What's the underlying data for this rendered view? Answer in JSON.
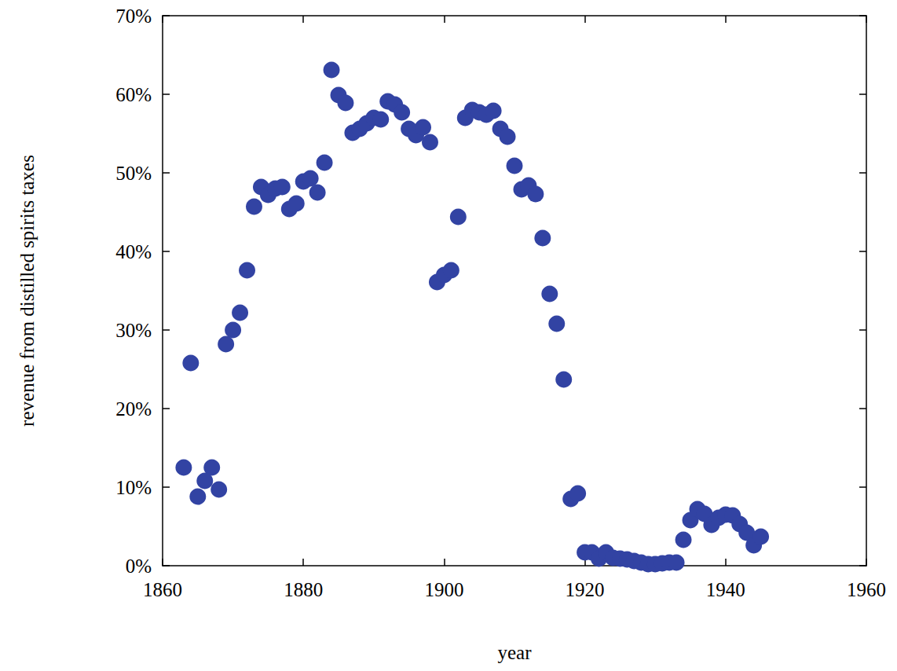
{
  "chart_data": {
    "type": "scatter",
    "x_label": "year",
    "y_label": "revenue from distilled spirits taxes",
    "color": "#3243a3",
    "marker": "circle",
    "grid": false,
    "xlim": [
      1860,
      1960
    ],
    "xticks": [
      1860,
      1880,
      1900,
      1920,
      1940,
      1960
    ],
    "ylim": [
      0,
      70
    ],
    "yticks": [
      {
        "value": 0,
        "label": "0%"
      },
      {
        "value": 10,
        "label": "10%"
      },
      {
        "value": 20,
        "label": "20%"
      },
      {
        "value": 30,
        "label": "30%"
      },
      {
        "value": 40,
        "label": "40%"
      },
      {
        "value": 50,
        "label": "50%"
      },
      {
        "value": 60,
        "label": "60%"
      },
      {
        "value": 70,
        "label": "70%"
      }
    ],
    "x": [
      1863,
      1864,
      1865,
      1866,
      1867,
      1868,
      1869,
      1870,
      1871,
      1872,
      1873,
      1874,
      1875,
      1876,
      1877,
      1878,
      1879,
      1880,
      1881,
      1882,
      1883,
      1884,
      1885,
      1886,
      1887,
      1888,
      1889,
      1890,
      1891,
      1892,
      1893,
      1894,
      1895,
      1896,
      1897,
      1898,
      1899,
      1900,
      1901,
      1902,
      1903,
      1904,
      1905,
      1906,
      1907,
      1908,
      1909,
      1910,
      1911,
      1912,
      1913,
      1914,
      1915,
      1916,
      1917,
      1918,
      1919,
      1920,
      1921,
      1922,
      1923,
      1924,
      1925,
      1926,
      1927,
      1928,
      1929,
      1930,
      1931,
      1932,
      1933,
      1934,
      1935,
      1936,
      1937,
      1938,
      1939,
      1940,
      1941,
      1942,
      1943,
      1944,
      1945
    ],
    "values": [
      12.5,
      25.8,
      8.8,
      10.8,
      12.5,
      9.7,
      28.2,
      30.0,
      32.2,
      37.6,
      45.7,
      48.2,
      47.2,
      48.0,
      48.2,
      45.4,
      46.1,
      48.9,
      49.3,
      47.5,
      51.3,
      63.1,
      59.9,
      58.9,
      55.1,
      55.6,
      56.3,
      57.0,
      56.8,
      59.1,
      58.7,
      57.7,
      55.6,
      54.8,
      55.8,
      53.9,
      36.1,
      37.0,
      37.6,
      44.4,
      57.0,
      58.0,
      57.7,
      57.4,
      57.9,
      55.6,
      54.6,
      50.9,
      47.9,
      48.4,
      47.3,
      41.7,
      34.6,
      30.8,
      23.7,
      8.5,
      9.2,
      1.7,
      1.7,
      0.9,
      1.7,
      1.0,
      0.9,
      0.8,
      0.6,
      0.4,
      0.2,
      0.2,
      0.3,
      0.4,
      0.4,
      3.3,
      5.8,
      7.2,
      6.6,
      5.2,
      6.1,
      6.5,
      6.4,
      5.3,
      4.2,
      2.6,
      3.7
    ]
  }
}
